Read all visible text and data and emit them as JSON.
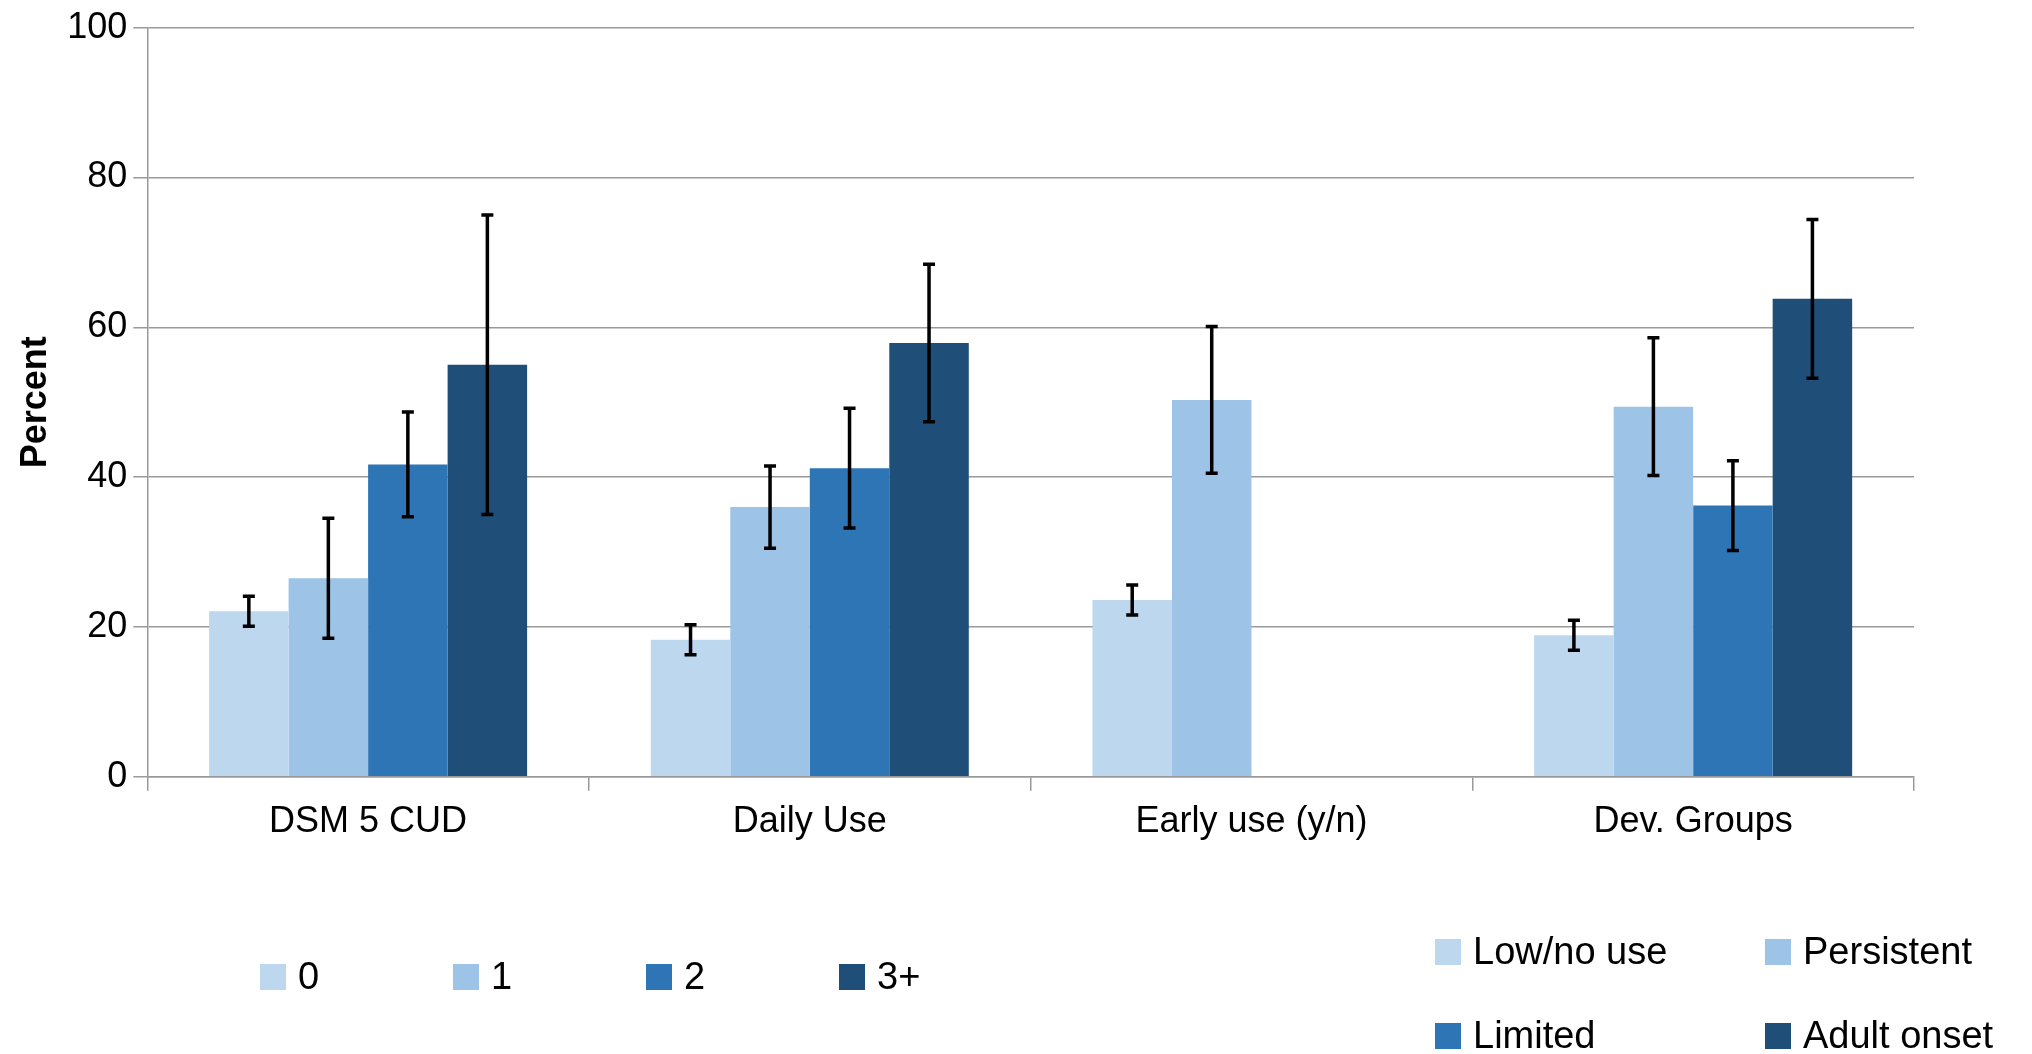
{
  "chart_data": {
    "type": "bar",
    "ylabel": "Percent",
    "categories": [
      "DSM 5 CUD",
      "Daily Use",
      "Early use (y/n)",
      "Dev. Groups"
    ],
    "series": [
      {
        "name": "0",
        "color": "#bdd7ee",
        "values": [
          22.1,
          18.3,
          23.6,
          18.9
        ],
        "errors": [
          2,
          2,
          2,
          2
        ]
      },
      {
        "name": "1",
        "color": "#9dc3e6",
        "values": [
          26.5,
          36,
          50.3,
          49.4
        ],
        "errors": [
          8,
          5.5,
          9.8,
          9.2
        ]
      },
      {
        "name": "2",
        "color": "#2e75b6",
        "values": [
          41.7,
          41.2,
          null,
          36.2
        ],
        "errors": [
          7,
          8,
          null,
          6
        ]
      },
      {
        "name": "3+",
        "color": "#1f4e79",
        "values": [
          55,
          57.9,
          null,
          63.8
        ],
        "errors": [
          20,
          10.5,
          null,
          10.6
        ]
      }
    ],
    "annotations": [
      "Low/no use",
      "Persistent",
      "Limited",
      "Adult onset"
    ],
    "ylim": [
      0,
      100
    ],
    "yticks": [
      0,
      20,
      40,
      60,
      80,
      100
    ],
    "grid": "y",
    "legend": "bottom"
  }
}
